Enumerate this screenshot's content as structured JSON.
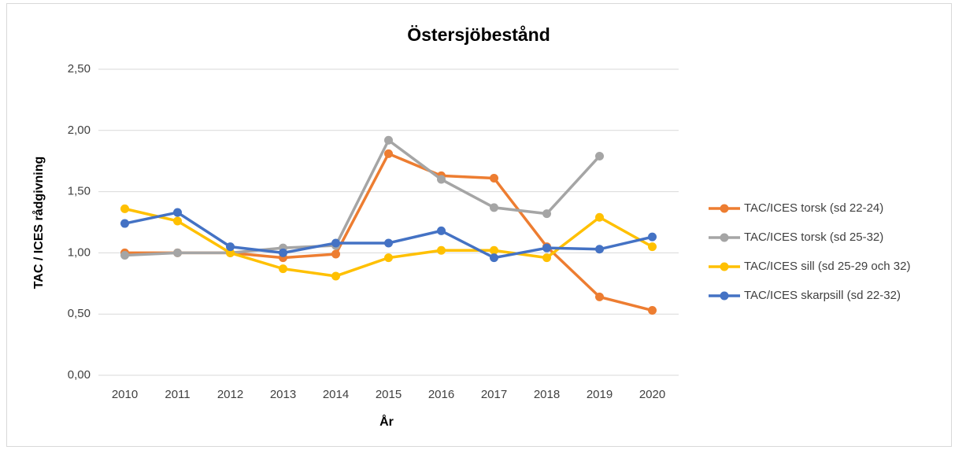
{
  "chart_data": {
    "type": "line",
    "title": "Östersjöbestånd",
    "xlabel": "År",
    "ylabel": "TAC / ICES rådgivning",
    "categories": [
      "2010",
      "2011",
      "2012",
      "2013",
      "2014",
      "2015",
      "2016",
      "2017",
      "2018",
      "2019",
      "2020"
    ],
    "series": [
      {
        "name": "TAC/ICES torsk (sd 22-24)",
        "color": "#ED7D31",
        "values": [
          1.0,
          1.0,
          1.0,
          0.96,
          0.99,
          1.81,
          1.63,
          1.61,
          1.05,
          0.64,
          0.53
        ]
      },
      {
        "name": "TAC/ICES torsk (sd 25-32)",
        "color": "#A5A5A5",
        "values": [
          0.98,
          1.0,
          1.0,
          1.04,
          1.06,
          1.92,
          1.6,
          1.37,
          1.32,
          1.79,
          null
        ]
      },
      {
        "name": "TAC/ICES sill (sd 25-29 och 32)",
        "color": "#FFC000",
        "values": [
          1.36,
          1.26,
          1.0,
          0.87,
          0.81,
          0.96,
          1.02,
          1.02,
          0.96,
          1.29,
          1.05
        ]
      },
      {
        "name": "TAC/ICES skarpsill (sd 22-32)",
        "color": "#4472C4",
        "values": [
          1.24,
          1.33,
          1.05,
          1.0,
          1.08,
          1.08,
          1.18,
          0.96,
          1.04,
          1.03,
          1.13
        ]
      }
    ],
    "ylim": [
      0,
      2.5
    ],
    "yticks": [
      {
        "value": 0,
        "label": "0,00"
      },
      {
        "value": 0.5,
        "label": "0,50"
      },
      {
        "value": 1,
        "label": "1,00"
      },
      {
        "value": 1.5,
        "label": "1,50"
      },
      {
        "value": 2,
        "label": "2,00"
      },
      {
        "value": 2.5,
        "label": "2,50"
      }
    ],
    "grid": true,
    "legend": "right"
  }
}
